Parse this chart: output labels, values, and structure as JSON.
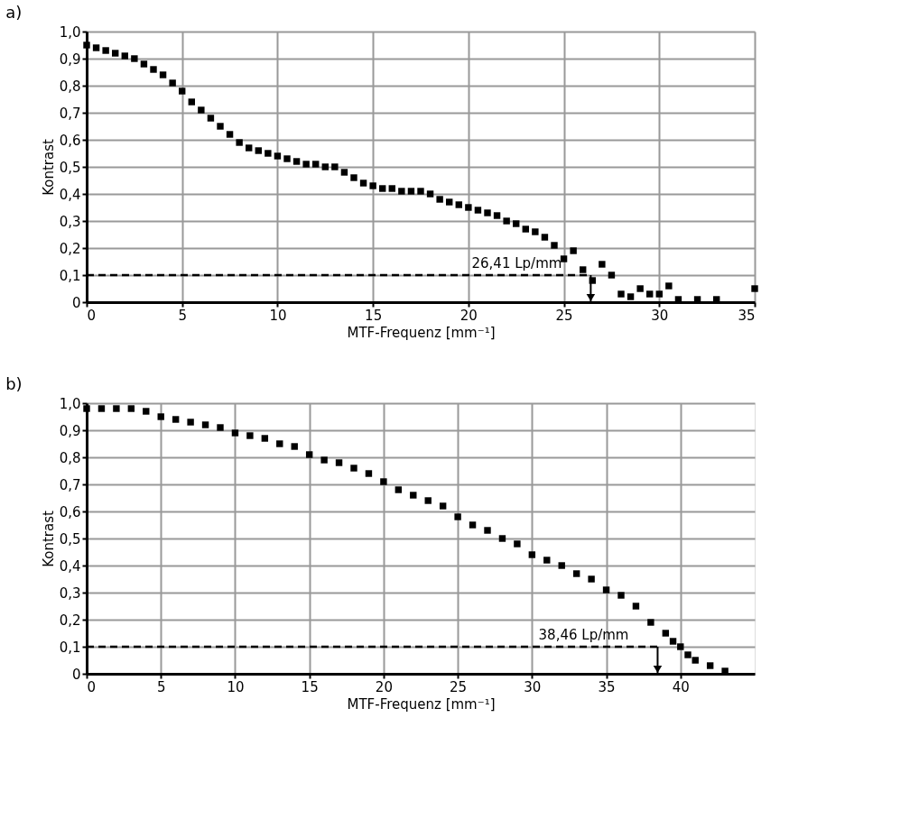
{
  "chart_data": [
    {
      "type": "scatter",
      "title": "a)",
      "xlabel": "MTF-Frequenz [mm⁻¹]",
      "ylabel": "Kontrast",
      "xlim": [
        0,
        35
      ],
      "xticks": [
        0,
        5,
        10,
        15,
        20,
        25,
        30,
        35
      ],
      "ylim": [
        0,
        1
      ],
      "yticks": [
        0,
        {
          "value": 0.1,
          "label": "0,1"
        },
        {
          "value": 0.2,
          "label": "0,2"
        },
        {
          "value": 0.3,
          "label": "0,3"
        },
        {
          "value": 0.4,
          "label": "0,4"
        },
        {
          "value": 0.5,
          "label": "0,5"
        },
        {
          "value": 0.6,
          "label": "0,6"
        },
        {
          "value": 0.7,
          "label": "0,7"
        },
        {
          "value": 0.8,
          "label": "0,8"
        },
        {
          "value": 0.9,
          "label": "0,9"
        },
        {
          "value": 1.0,
          "label": "1,0"
        }
      ],
      "grid": true,
      "legend": false,
      "marker": "square",
      "annotations": [
        {
          "text": "26,41 Lp/mm",
          "x": 26.41,
          "y": 0.1
        }
      ],
      "series": [
        {
          "type": "scatter",
          "color": "#000000",
          "x": [
            0,
            0.5,
            1,
            1.5,
            2,
            2.5,
            3,
            3.5,
            4,
            4.5,
            5,
            5.5,
            6,
            6.5,
            7,
            7.5,
            8,
            8.5,
            9,
            9.5,
            10,
            10.5,
            11,
            11.5,
            12,
            12.5,
            13,
            13.5,
            14,
            14.5,
            15,
            15.5,
            16,
            16.5,
            17,
            17.5,
            18,
            18.5,
            19,
            19.5,
            20,
            20.5,
            21,
            21.5,
            22,
            22.5,
            23,
            23.5,
            24,
            24.5,
            25,
            25.5,
            26,
            26.5,
            27,
            27.5,
            28,
            28.5,
            29,
            29.5,
            30,
            30.5,
            31,
            32,
            33,
            35
          ],
          "values": [
            0.95,
            0.94,
            0.93,
            0.92,
            0.91,
            0.9,
            0.88,
            0.86,
            0.84,
            0.81,
            0.78,
            0.74,
            0.71,
            0.68,
            0.65,
            0.62,
            0.59,
            0.57,
            0.56,
            0.55,
            0.54,
            0.53,
            0.52,
            0.51,
            0.51,
            0.5,
            0.5,
            0.48,
            0.46,
            0.44,
            0.43,
            0.42,
            0.42,
            0.41,
            0.41,
            0.41,
            0.4,
            0.38,
            0.37,
            0.36,
            0.35,
            0.34,
            0.33,
            0.32,
            0.3,
            0.29,
            0.27,
            0.26,
            0.24,
            0.21,
            0.16,
            0.19,
            0.12,
            0.08,
            0.14,
            0.1,
            0.03,
            0.02,
            0.05,
            0.03,
            0.03,
            0.06,
            0.01,
            0.01,
            0.01,
            0.05
          ]
        },
        {
          "type": "line",
          "color": "#000000",
          "marker": "none",
          "line_style": "dashed",
          "x": [
            0,
            26.41
          ],
          "values": [
            0.1,
            0.1
          ]
        }
      ]
    },
    {
      "type": "scatter",
      "title": "b)",
      "xlabel": "MTF-Frequenz [mm⁻¹]",
      "ylabel": "Kontrast",
      "xlim": [
        0,
        45
      ],
      "xticks": [
        0,
        5,
        10,
        15,
        20,
        25,
        30,
        35,
        40
      ],
      "ylim": [
        0,
        1
      ],
      "yticks": [
        0,
        {
          "value": 0.1,
          "label": "0,1"
        },
        {
          "value": 0.2,
          "label": "0,2"
        },
        {
          "value": 0.3,
          "label": "0,3"
        },
        {
          "value": 0.4,
          "label": "0,4"
        },
        {
          "value": 0.5,
          "label": "0,5"
        },
        {
          "value": 0.6,
          "label": "0,6"
        },
        {
          "value": 0.7,
          "label": "0,7"
        },
        {
          "value": 0.8,
          "label": "0,8"
        },
        {
          "value": 0.9,
          "label": "0,9"
        },
        {
          "value": 1.0,
          "label": "1,0"
        }
      ],
      "grid": true,
      "legend": false,
      "marker": "square",
      "annotations": [
        {
          "text": "38,46 Lp/mm",
          "x": 38.46,
          "y": 0.1
        }
      ],
      "series": [
        {
          "type": "scatter",
          "color": "#000000",
          "x": [
            0,
            1,
            2,
            3,
            4,
            5,
            6,
            7,
            8,
            9,
            10,
            11,
            12,
            13,
            14,
            15,
            16,
            17,
            18,
            19,
            20,
            21,
            22,
            23,
            24,
            25,
            26,
            27,
            28,
            29,
            30,
            31,
            32,
            33,
            34,
            35,
            36,
            37,
            38,
            39,
            39.5,
            40,
            40.5,
            41,
            42,
            43
          ],
          "values": [
            0.98,
            0.98,
            0.98,
            0.98,
            0.97,
            0.95,
            0.94,
            0.93,
            0.92,
            0.91,
            0.89,
            0.88,
            0.87,
            0.85,
            0.84,
            0.81,
            0.79,
            0.78,
            0.76,
            0.74,
            0.71,
            0.68,
            0.66,
            0.64,
            0.62,
            0.58,
            0.55,
            0.53,
            0.5,
            0.48,
            0.44,
            0.42,
            0.4,
            0.37,
            0.35,
            0.31,
            0.29,
            0.25,
            0.19,
            0.15,
            0.12,
            0.1,
            0.07,
            0.05,
            0.03,
            0.01
          ]
        },
        {
          "type": "line",
          "color": "#000000",
          "marker": "none",
          "line_style": "dashed",
          "x": [
            0,
            38.46
          ],
          "values": [
            0.1,
            0.1
          ]
        }
      ]
    }
  ]
}
